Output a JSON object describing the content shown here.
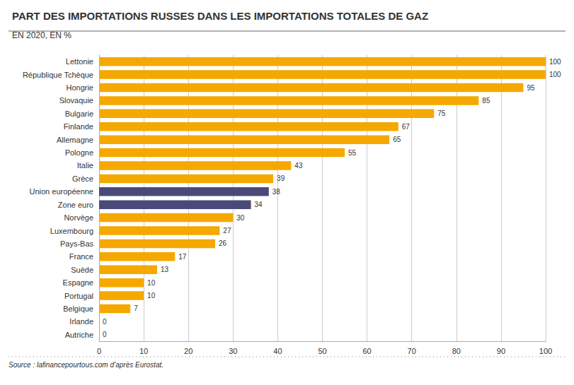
{
  "chart_data": {
    "type": "bar",
    "orientation": "horizontal",
    "title": "PART DES IMPORTATIONS RUSSES DANS LES IMPORTATIONS TOTALES DE GAZ",
    "subtitle": "EN 2020, EN %",
    "annotations": [
      "Source : lafinancepourtous.com d’après Eurostat."
    ],
    "categories": [
      "Autriche",
      "Irlande",
      "Belgique",
      "Portugal",
      "Espagne",
      "Suède",
      "France",
      "Pays-Bas",
      "Luxembourg",
      "Norvège",
      "Zone euro",
      "Union européenne",
      "Grèce",
      "Italie",
      "Pologne",
      "Allemagne",
      "Finlande",
      "Bulgarie",
      "Slovaquie",
      "Hongrie",
      "République Tchèque",
      "Lettonie"
    ],
    "values": [
      0,
      0,
      7,
      10,
      10,
      13,
      17,
      26,
      27,
      30,
      34,
      38,
      39,
      43,
      55,
      65,
      67,
      75,
      85,
      95,
      100,
      100
    ],
    "colors": [
      "#F5A800",
      "#F5A800",
      "#F5A800",
      "#F5A800",
      "#F5A800",
      "#F5A800",
      "#F5A800",
      "#F5A800",
      "#F5A800",
      "#F5A800",
      "#4A4A7A",
      "#4A4A7A",
      "#F5A800",
      "#F5A800",
      "#F5A800",
      "#F5A800",
      "#F5A800",
      "#F5A800",
      "#F5A800",
      "#F5A800",
      "#F5A800",
      "#F5A800"
    ],
    "xlim": [
      0,
      100
    ],
    "xticks": [
      0,
      10,
      20,
      30,
      40,
      50,
      60,
      70,
      80,
      90,
      100
    ],
    "grid": true,
    "data_labels": true
  }
}
